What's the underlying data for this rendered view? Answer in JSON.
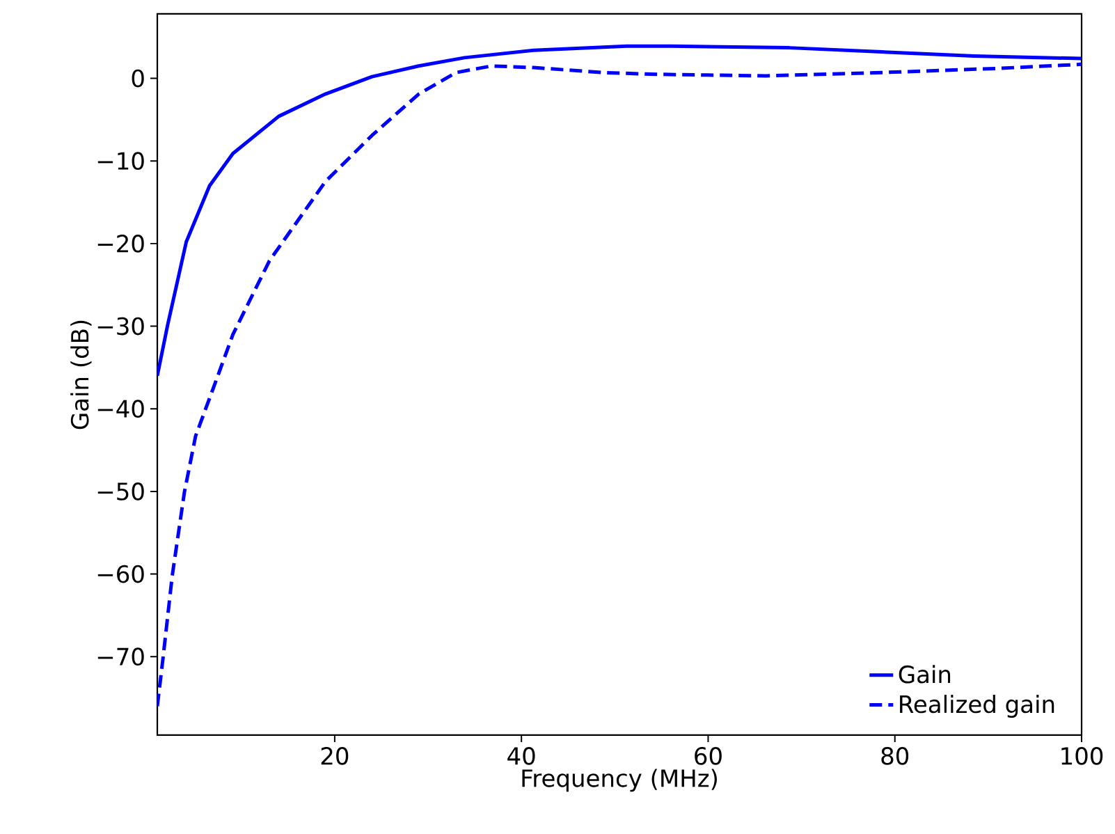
{
  "chart_data": {
    "type": "line",
    "xlabel": "Frequency (MHz)",
    "ylabel": "Gain (dB)",
    "xlim": [
      1,
      100
    ],
    "ylim": [
      -79.5,
      7.8
    ],
    "xticks": [
      20,
      40,
      60,
      80,
      100
    ],
    "yticks": [
      {
        "value": -70,
        "label": "−70"
      },
      {
        "value": -60,
        "label": "−60"
      },
      {
        "value": -50,
        "label": "−50"
      },
      {
        "value": -40,
        "label": "−40"
      },
      {
        "value": -30,
        "label": "−30"
      },
      {
        "value": -20,
        "label": "−20"
      },
      {
        "value": -10,
        "label": "−10"
      },
      0
    ],
    "legend": "bottom right",
    "grid": false,
    "marker": "none",
    "series": [
      {
        "name": "Gain",
        "color": "#0000ff",
        "line_style": "solid",
        "x": [
          1,
          2.1,
          4.1,
          6.6,
          9.1,
          14,
          19,
          24,
          29,
          33.9,
          41.3,
          51.3,
          56,
          68.7,
          78.6,
          88.5,
          100
        ],
        "values": [
          -36,
          -29.9,
          -19.8,
          -13,
          -9.1,
          -4.6,
          -1.9,
          0.2,
          1.5,
          2.5,
          3.4,
          3.9,
          3.9,
          3.7,
          3.2,
          2.7,
          2.4
        ]
      },
      {
        "name": "Realized gain",
        "color": "#0000ff",
        "line_style": "dashed",
        "x": [
          1,
          1.6,
          2.6,
          3.9,
          5.1,
          6.9,
          9.1,
          13,
          19,
          24,
          29,
          33,
          36.8,
          41.3,
          48.8,
          53.8,
          66.2,
          78.6,
          91,
          100
        ],
        "values": [
          -76,
          -70.3,
          -60.2,
          -50.1,
          -43.3,
          -37.8,
          -31,
          -22.1,
          -12.5,
          -6.9,
          -1.9,
          0.7,
          1.5,
          1.3,
          0.7,
          0.5,
          0.3,
          0.7,
          1.2,
          1.7
        ]
      }
    ]
  }
}
